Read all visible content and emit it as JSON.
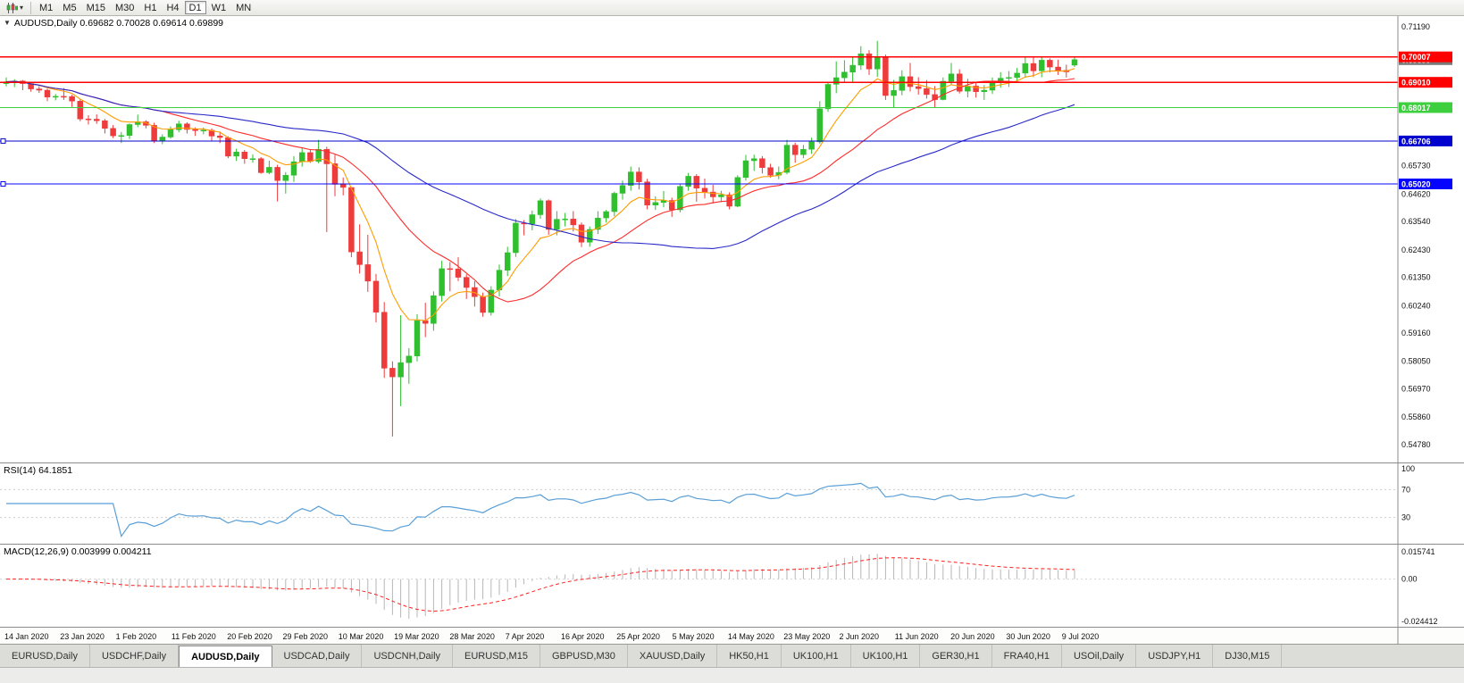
{
  "toolbar": {
    "periods": [
      "M1",
      "M5",
      "M15",
      "M30",
      "H1",
      "H4",
      "D1",
      "W1",
      "MN"
    ],
    "active_period": "D1"
  },
  "chart": {
    "title_readout": "AUDUSD,Daily 0.69682 0.70028 0.69614 0.69899",
    "collapse_icon": "▼"
  },
  "chart_data": {
    "type": "candlestick",
    "symbol": "AUDUSD",
    "timeframe": "Daily",
    "last_ohlc": {
      "open": 0.69682,
      "high": 0.70028,
      "low": 0.69614,
      "close": 0.69899
    },
    "price_range": {
      "min": 0.5478,
      "max": 0.7119
    },
    "y_axis_labels": [
      {
        "price": 0.7119,
        "label": "0.71190"
      },
      {
        "price": 0.6573,
        "label": "0.65730"
      },
      {
        "price": 0.6462,
        "label": "0.64620"
      },
      {
        "price": 0.6354,
        "label": "0.63540"
      },
      {
        "price": 0.6243,
        "label": "0.62430"
      },
      {
        "price": 0.6135,
        "label": "0.61350"
      },
      {
        "price": 0.6024,
        "label": "0.60240"
      },
      {
        "price": 0.5916,
        "label": "0.59160"
      },
      {
        "price": 0.5805,
        "label": "0.58050"
      },
      {
        "price": 0.5697,
        "label": "0.56970"
      },
      {
        "price": 0.5586,
        "label": "0.55860"
      },
      {
        "price": 0.5478,
        "label": "0.54780"
      }
    ],
    "x_axis_labels": [
      "14 Jan 2020",
      "23 Jan 2020",
      "1 Feb 2020",
      "11 Feb 2020",
      "20 Feb 2020",
      "29 Feb 2020",
      "10 Mar 2020",
      "19 Mar 2020",
      "28 Mar 2020",
      "7 Apr 2020",
      "16 Apr 2020",
      "25 Apr 2020",
      "5 May 2020",
      "14 May 2020",
      "23 May 2020",
      "2 Jun 2020",
      "11 Jun 2020",
      "20 Jun 2020",
      "30 Jun 2020",
      "9 Jul 2020"
    ],
    "levels": [
      {
        "price": 0.70007,
        "label": "0.70007",
        "color": "#ff0000"
      },
      {
        "price": 0.6901,
        "label": "0.69010",
        "color": "#ff0000"
      },
      {
        "price": 0.68017,
        "label": "0.68017",
        "color": "#3ecf3e"
      },
      {
        "price": 0.66706,
        "label": "0.66706",
        "color": "#0202cf",
        "handle": true
      },
      {
        "price": 0.6502,
        "label": "0.65020",
        "color": "#0404ff",
        "handle": true
      }
    ],
    "bid_box": {
      "price": 0.69899,
      "label": "0.69899",
      "color": "#7a7a7a"
    },
    "moving_averages": [
      {
        "name": "fast",
        "method": "ema",
        "period": 8,
        "color": "#ff9c00"
      },
      {
        "name": "mid",
        "method": "sma",
        "period": 20,
        "color": "#ff2a2a"
      },
      {
        "name": "slow",
        "method": "sma",
        "period": 45,
        "color": "#2929c8"
      }
    ],
    "rsi": {
      "label": "RSI(14) 64.1851",
      "period": 14,
      "color": "#5a9fd6",
      "axis_labels": [
        100,
        70,
        30
      ],
      "guides": [
        70,
        30
      ]
    },
    "macd": {
      "label": "MACD(12,26,9) 0.003999 0.004211",
      "fast": 12,
      "slow": 26,
      "signal": 9,
      "hist_color": "#b6b6b6",
      "signal_color": "#ff1e1e",
      "axis_max": 0.015741,
      "axis_max_label": "0.015741",
      "axis_zero_label": "0.00",
      "axis_min": -0.024412,
      "axis_min_label": "-0.024412"
    },
    "candles_ohlc": [
      [
        0.6896,
        0.692,
        0.6885,
        0.6903
      ],
      [
        0.6903,
        0.6913,
        0.6882,
        0.6906
      ],
      [
        0.6906,
        0.691,
        0.687,
        0.6896
      ],
      [
        0.6896,
        0.6902,
        0.6864,
        0.6875
      ],
      [
        0.6875,
        0.6886,
        0.6859,
        0.687
      ],
      [
        0.687,
        0.6876,
        0.6827,
        0.6843
      ],
      [
        0.6843,
        0.6855,
        0.683,
        0.6846
      ],
      [
        0.6846,
        0.6878,
        0.6832,
        0.6845
      ],
      [
        0.6845,
        0.6852,
        0.6804,
        0.6827
      ],
      [
        0.6827,
        0.6834,
        0.6748,
        0.6757
      ],
      [
        0.6757,
        0.6772,
        0.6735,
        0.6756
      ],
      [
        0.6756,
        0.6775,
        0.6738,
        0.675
      ],
      [
        0.675,
        0.6757,
        0.67,
        0.672
      ],
      [
        0.672,
        0.6733,
        0.6682,
        0.6691
      ],
      [
        0.6691,
        0.6706,
        0.6662,
        0.6692
      ],
      [
        0.6692,
        0.6739,
        0.6678,
        0.6735
      ],
      [
        0.6735,
        0.6774,
        0.6725,
        0.6746
      ],
      [
        0.6746,
        0.6752,
        0.672,
        0.6732
      ],
      [
        0.6732,
        0.6742,
        0.6662,
        0.6671
      ],
      [
        0.6671,
        0.6697,
        0.6658,
        0.6686
      ],
      [
        0.6686,
        0.6727,
        0.668,
        0.6715
      ],
      [
        0.6715,
        0.675,
        0.6705,
        0.6738
      ],
      [
        0.6738,
        0.6744,
        0.67,
        0.6716
      ],
      [
        0.6716,
        0.6724,
        0.669,
        0.6711
      ],
      [
        0.6711,
        0.6723,
        0.6697,
        0.6713
      ],
      [
        0.6713,
        0.672,
        0.6672,
        0.669
      ],
      [
        0.669,
        0.6708,
        0.6662,
        0.6684
      ],
      [
        0.6684,
        0.6689,
        0.6603,
        0.6611
      ],
      [
        0.6611,
        0.664,
        0.6592,
        0.6627
      ],
      [
        0.6627,
        0.6635,
        0.6581,
        0.6601
      ],
      [
        0.6601,
        0.6618,
        0.6585,
        0.6601
      ],
      [
        0.6601,
        0.6607,
        0.6542,
        0.6546
      ],
      [
        0.6546,
        0.6593,
        0.654,
        0.6567
      ],
      [
        0.6567,
        0.6577,
        0.6433,
        0.6515
      ],
      [
        0.6515,
        0.6548,
        0.6464,
        0.6536
      ],
      [
        0.6536,
        0.6611,
        0.651,
        0.6589
      ],
      [
        0.6589,
        0.6646,
        0.657,
        0.6625
      ],
      [
        0.6625,
        0.6636,
        0.6585,
        0.659
      ],
      [
        0.659,
        0.6675,
        0.6583,
        0.6638
      ],
      [
        0.6638,
        0.6648,
        0.6313,
        0.6581
      ],
      [
        0.6581,
        0.6617,
        0.6454,
        0.65
      ],
      [
        0.65,
        0.6527,
        0.6457,
        0.6488
      ],
      [
        0.6488,
        0.649,
        0.6214,
        0.6235
      ],
      [
        0.6235,
        0.6343,
        0.615,
        0.6185
      ],
      [
        0.6185,
        0.6302,
        0.6078,
        0.612
      ],
      [
        0.612,
        0.6148,
        0.5958,
        0.5998
      ],
      [
        0.5998,
        0.6038,
        0.574,
        0.5778
      ],
      [
        0.5778,
        0.5805,
        0.551,
        0.5744
      ],
      [
        0.5744,
        0.5986,
        0.5629,
        0.58
      ],
      [
        0.58,
        0.5857,
        0.5717,
        0.5826
      ],
      [
        0.5826,
        0.599,
        0.5805,
        0.5965
      ],
      [
        0.5965,
        0.6035,
        0.59,
        0.5954
      ],
      [
        0.5954,
        0.608,
        0.5925,
        0.6063
      ],
      [
        0.6063,
        0.62,
        0.604,
        0.6169
      ],
      [
        0.6169,
        0.6195,
        0.608,
        0.6168
      ],
      [
        0.6168,
        0.6214,
        0.612,
        0.6135
      ],
      [
        0.6135,
        0.6147,
        0.605,
        0.6095
      ],
      [
        0.6095,
        0.612,
        0.602,
        0.6059
      ],
      [
        0.6059,
        0.6075,
        0.598,
        0.5997
      ],
      [
        0.5997,
        0.61,
        0.5985,
        0.6085
      ],
      [
        0.6085,
        0.6185,
        0.606,
        0.6163
      ],
      [
        0.6163,
        0.6255,
        0.614,
        0.6232
      ],
      [
        0.6232,
        0.6364,
        0.6215,
        0.6348
      ],
      [
        0.6348,
        0.636,
        0.63,
        0.6345
      ],
      [
        0.6345,
        0.6397,
        0.632,
        0.6381
      ],
      [
        0.6381,
        0.6445,
        0.6365,
        0.6436
      ],
      [
        0.6436,
        0.6441,
        0.6302,
        0.6323
      ],
      [
        0.6323,
        0.6395,
        0.63,
        0.6363
      ],
      [
        0.6363,
        0.6388,
        0.6335,
        0.6364
      ],
      [
        0.6364,
        0.6395,
        0.6315,
        0.6341
      ],
      [
        0.6341,
        0.635,
        0.6254,
        0.6273
      ],
      [
        0.6273,
        0.6335,
        0.6255,
        0.6323
      ],
      [
        0.6323,
        0.6395,
        0.6305,
        0.6368
      ],
      [
        0.6368,
        0.64,
        0.635,
        0.6393
      ],
      [
        0.6393,
        0.6471,
        0.6375,
        0.6465
      ],
      [
        0.6465,
        0.6515,
        0.644,
        0.6496
      ],
      [
        0.6496,
        0.657,
        0.6475,
        0.6549
      ],
      [
        0.6549,
        0.6567,
        0.648,
        0.651
      ],
      [
        0.651,
        0.6522,
        0.6402,
        0.6419
      ],
      [
        0.6419,
        0.6453,
        0.64,
        0.6429
      ],
      [
        0.6429,
        0.6474,
        0.641,
        0.6437
      ],
      [
        0.6437,
        0.6448,
        0.6372,
        0.64
      ],
      [
        0.64,
        0.6503,
        0.639,
        0.6492
      ],
      [
        0.6492,
        0.6545,
        0.6475,
        0.6532
      ],
      [
        0.6532,
        0.654,
        0.6432,
        0.6485
      ],
      [
        0.6485,
        0.6523,
        0.6445,
        0.647
      ],
      [
        0.647,
        0.6498,
        0.6425,
        0.6451
      ],
      [
        0.6451,
        0.6475,
        0.643,
        0.6459
      ],
      [
        0.6459,
        0.6469,
        0.6402,
        0.6414
      ],
      [
        0.6414,
        0.6536,
        0.641,
        0.6527
      ],
      [
        0.6527,
        0.6616,
        0.6515,
        0.6593
      ],
      [
        0.6593,
        0.6617,
        0.6553,
        0.6601
      ],
      [
        0.6601,
        0.6611,
        0.6543,
        0.6566
      ],
      [
        0.6566,
        0.6581,
        0.6526,
        0.6536
      ],
      [
        0.6536,
        0.657,
        0.652,
        0.6547
      ],
      [
        0.6547,
        0.6675,
        0.654,
        0.6654
      ],
      [
        0.6654,
        0.6664,
        0.6585,
        0.6617
      ],
      [
        0.6617,
        0.6655,
        0.6603,
        0.6638
      ],
      [
        0.6638,
        0.6684,
        0.662,
        0.6667
      ],
      [
        0.6667,
        0.6827,
        0.666,
        0.6797
      ],
      [
        0.6797,
        0.6898,
        0.6785,
        0.6893
      ],
      [
        0.6893,
        0.6983,
        0.6858,
        0.6919
      ],
      [
        0.6919,
        0.6988,
        0.6902,
        0.6941
      ],
      [
        0.6941,
        0.7,
        0.69,
        0.6968
      ],
      [
        0.6968,
        0.7043,
        0.695,
        0.7013
      ],
      [
        0.7013,
        0.7027,
        0.693,
        0.6953
      ],
      [
        0.6953,
        0.7064,
        0.6922,
        0.7
      ],
      [
        0.7,
        0.701,
        0.6832,
        0.6849
      ],
      [
        0.6849,
        0.691,
        0.68,
        0.6869
      ],
      [
        0.6869,
        0.6948,
        0.685,
        0.6923
      ],
      [
        0.6923,
        0.6977,
        0.6865,
        0.6884
      ],
      [
        0.6884,
        0.6921,
        0.6852,
        0.6876
      ],
      [
        0.6876,
        0.691,
        0.6837,
        0.6853
      ],
      [
        0.6853,
        0.6886,
        0.68,
        0.6833
      ],
      [
        0.6833,
        0.692,
        0.683,
        0.6905
      ],
      [
        0.6905,
        0.6977,
        0.689,
        0.6934
      ],
      [
        0.6934,
        0.6952,
        0.6857,
        0.6866
      ],
      [
        0.6866,
        0.6915,
        0.6842,
        0.6886
      ],
      [
        0.6886,
        0.6901,
        0.6841,
        0.6864
      ],
      [
        0.6864,
        0.689,
        0.6832,
        0.687
      ],
      [
        0.687,
        0.692,
        0.6855,
        0.6903
      ],
      [
        0.6903,
        0.6941,
        0.688,
        0.6917
      ],
      [
        0.6917,
        0.6945,
        0.6883,
        0.692
      ],
      [
        0.692,
        0.6957,
        0.6901,
        0.6937
      ],
      [
        0.6937,
        0.6998,
        0.692,
        0.6975
      ],
      [
        0.6975,
        0.6998,
        0.6922,
        0.6946
      ],
      [
        0.6946,
        0.7,
        0.6921,
        0.6988
      ],
      [
        0.6988,
        0.6995,
        0.694,
        0.6961
      ],
      [
        0.6961,
        0.699,
        0.693,
        0.6948
      ],
      [
        0.6948,
        0.697,
        0.692,
        0.6942
      ],
      [
        0.69682,
        0.70028,
        0.69614,
        0.69899
      ]
    ],
    "colors": {
      "candle_up": "#2fbf2f",
      "candle_down": "#ee3b3b",
      "background": "#ffffff",
      "axis_text": "#111111"
    }
  },
  "tabs": {
    "active_index": 2,
    "items": [
      {
        "label": "EURUSD,Daily"
      },
      {
        "label": "USDCHF,Daily"
      },
      {
        "label": "AUDUSD,Daily"
      },
      {
        "label": "USDCAD,Daily"
      },
      {
        "label": "USDCNH,Daily"
      },
      {
        "label": "EURUSD,M15"
      },
      {
        "label": "GBPUSD,M30"
      },
      {
        "label": "XAUUSD,Daily"
      },
      {
        "label": "HK50,H1"
      },
      {
        "label": "UK100,H1"
      },
      {
        "label": "UK100,H1"
      },
      {
        "label": "GER30,H1"
      },
      {
        "label": "FRA40,H1"
      },
      {
        "label": "USOil,Daily"
      },
      {
        "label": "USDJPY,H1"
      },
      {
        "label": "DJ30,M15"
      }
    ]
  }
}
